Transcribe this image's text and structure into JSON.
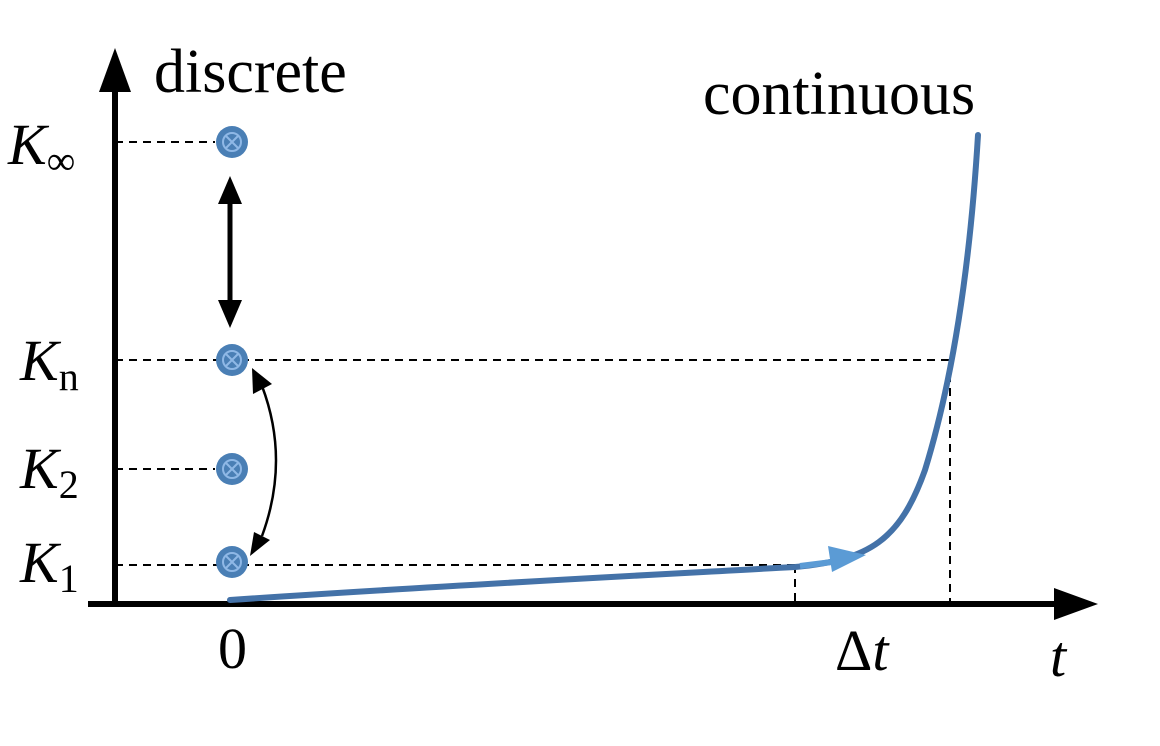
{
  "diagram": {
    "discrete_label": "discrete",
    "continuous_label": "continuous",
    "levels": [
      {
        "name": "k-infinity",
        "main": "K",
        "sub": "∞"
      },
      {
        "name": "k-n",
        "main": "K",
        "sub": "n"
      },
      {
        "name": "k-2",
        "main": "K",
        "sub": "2"
      },
      {
        "name": "k-1",
        "main": "K",
        "sub": "1"
      }
    ],
    "x_axis": {
      "origin_label": "0",
      "delta_main": "Δ",
      "delta_var": "t",
      "axis_label": "t"
    },
    "colors": {
      "curve": "#4472a8",
      "curve_arrow": "#5b9bd5",
      "dot": "#4a7fb5",
      "dot_mark": "#8fb8e6",
      "axis": "#000000"
    }
  }
}
